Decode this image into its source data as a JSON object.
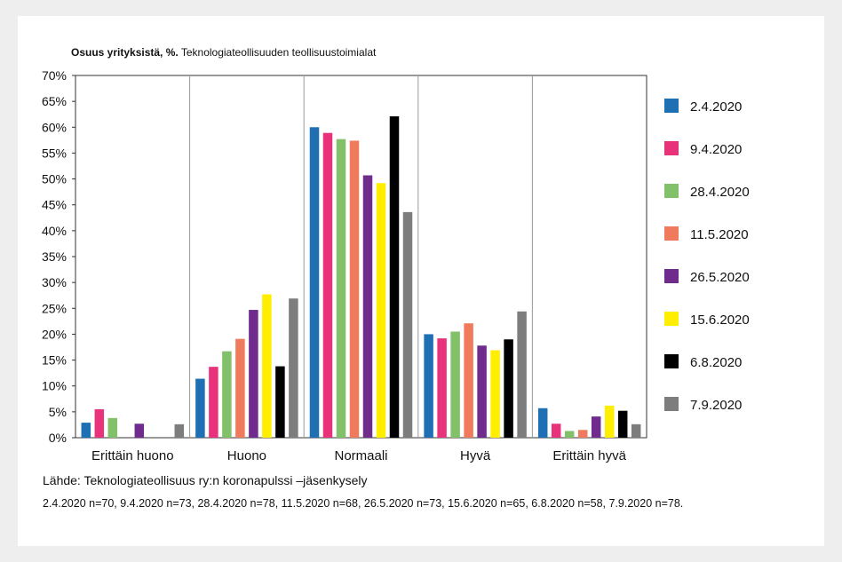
{
  "chart_data": {
    "type": "bar",
    "title_bold": "Osuus yrityksistä, %.",
    "title_rest": " Teknologiateollisuuden teollisuustoimialat",
    "xlabel": "",
    "ylabel": "",
    "ylim": [
      0,
      70
    ],
    "yticks": [
      "0%",
      "5%",
      "10%",
      "15%",
      "20%",
      "25%",
      "30%",
      "35%",
      "40%",
      "45%",
      "50%",
      "55%",
      "60%",
      "65%",
      "70%"
    ],
    "grid": "vertical separators between categories",
    "legend_position": "right",
    "categories": [
      "Erittäin huono",
      "Huono",
      "Normaali",
      "Hyvä",
      "Erittäin hyvä"
    ],
    "series": [
      {
        "name": "2.4.2020",
        "color": "#1f6fb5",
        "values": [
          2.9,
          11.4,
          60.0,
          20.0,
          5.7
        ]
      },
      {
        "name": "9.4.2020",
        "color": "#e8337a",
        "values": [
          5.5,
          13.7,
          58.9,
          19.2,
          2.7
        ]
      },
      {
        "name": "28.4.2020",
        "color": "#82c06a",
        "values": [
          3.8,
          16.7,
          57.7,
          20.5,
          1.3
        ]
      },
      {
        "name": "11.5.2020",
        "color": "#ef7a5c",
        "values": [
          0,
          19.1,
          57.4,
          22.1,
          1.5
        ]
      },
      {
        "name": "26.5.2020",
        "color": "#6f2c8c",
        "values": [
          2.7,
          24.7,
          50.7,
          17.8,
          4.1
        ]
      },
      {
        "name": "15.6.2020",
        "color": "#ffee00",
        "values": [
          0,
          27.7,
          49.2,
          16.9,
          6.2
        ]
      },
      {
        "name": "6.8.2020",
        "color": "#000000",
        "values": [
          0,
          13.8,
          62.1,
          19.0,
          5.2
        ]
      },
      {
        "name": "7.9.2020",
        "color": "#7d7d7d",
        "values": [
          2.6,
          26.9,
          43.6,
          24.4,
          2.6
        ]
      }
    ]
  },
  "source": {
    "line1": "Lähde: Teknologiateollisuus ry:n koronapulssi –jäsenkysely",
    "line2": "2.4.2020 n=70, 9.4.2020 n=73, 28.4.2020 n=78, 11.5.2020 n=68, 26.5.2020 n=73, 15.6.2020 n=65, 6.8.2020 n=58, 7.9.2020 n=78."
  }
}
